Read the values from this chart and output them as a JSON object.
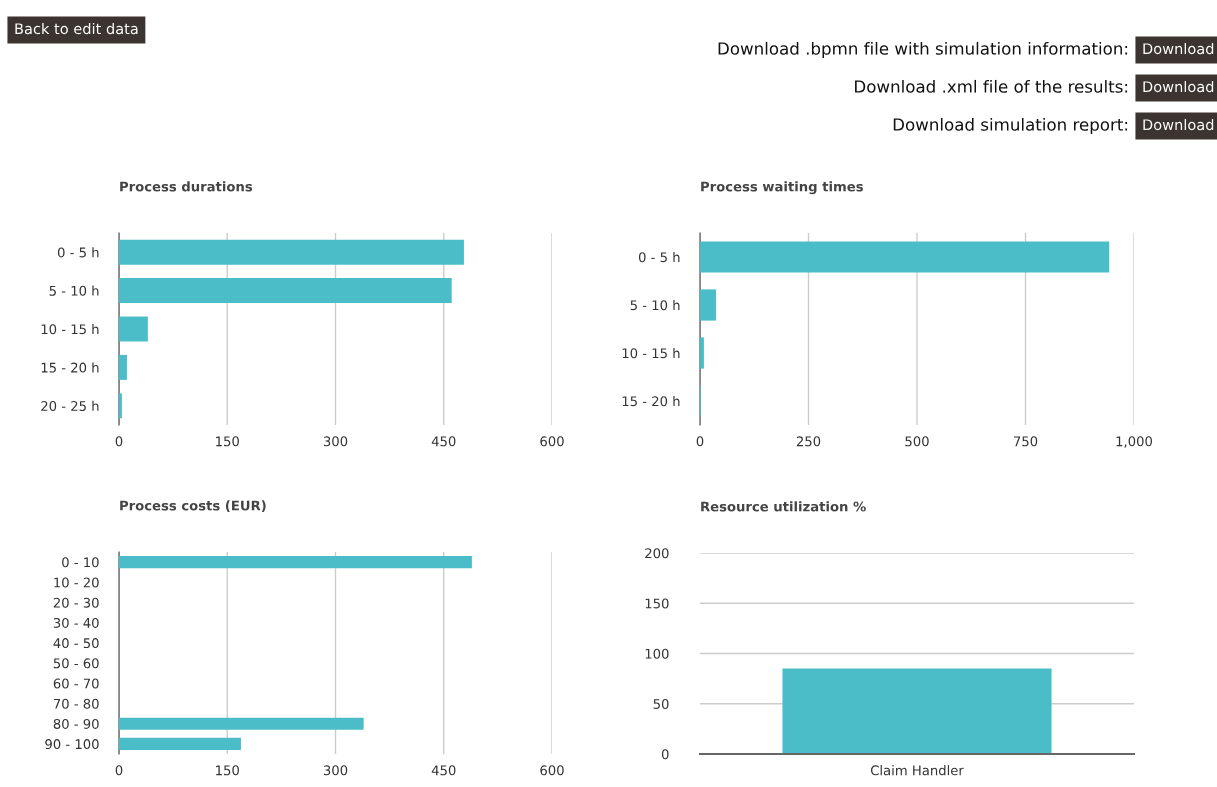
{
  "chart_data": [
    {
      "type": "other",
      "annotations": [
        "Back to edit data",
        "Download .bpmn file with simulation information:",
        "Download",
        "Download .xml file of the results:",
        "Download",
        "Download simulation report:",
        "Download"
      ]
    },
    {
      "type": "bar",
      "orientation": "horizontal",
      "title": "Process durations",
      "categories": [
        "0 - 5 h",
        "5 - 10 h",
        "10 - 15 h",
        "15 - 20 h",
        "20 - 25 h"
      ],
      "values": [
        478,
        461,
        40,
        11,
        4
      ],
      "color": "#4bbdc8",
      "xlim": [
        0,
        600
      ],
      "xticks": [
        0,
        150,
        300,
        450,
        600
      ],
      "grid": "x"
    },
    {
      "type": "bar",
      "orientation": "horizontal",
      "title": "Process waiting times",
      "categories": [
        "0 - 5 h",
        "5 - 10 h",
        "10 - 15 h",
        "15 - 20 h"
      ],
      "values": [
        943,
        37,
        9,
        2
      ],
      "color": "#4bbdc8",
      "xlim": [
        0,
        1000
      ],
      "xticks": [
        0,
        250,
        500,
        750,
        {
          "value": 1000,
          "label": "1,000"
        }
      ],
      "grid": "x"
    },
    {
      "type": "bar",
      "orientation": "horizontal",
      "title": "Process costs (EUR)",
      "categories": [
        "0 - 10",
        "10 - 20",
        "20 - 30",
        "30 - 40",
        "40 - 50",
        "50 - 60",
        "60 - 70",
        "70 - 80",
        "80 - 90",
        "90 - 100"
      ],
      "values": [
        489,
        0,
        0,
        0,
        0,
        0,
        0,
        0,
        339,
        169
      ],
      "color": "#4bbdc8",
      "xlim": [
        0,
        600
      ],
      "xticks": [
        0,
        150,
        300,
        450,
        600
      ],
      "grid": "x"
    },
    {
      "type": "bar",
      "title": "Resource utilization %",
      "categories": [
        "Claim Handler"
      ],
      "values": [
        85
      ],
      "color": "#4bbdc8",
      "ylim": [
        0,
        200
      ],
      "yticks": [
        0,
        50,
        100,
        150,
        200
      ],
      "grid": "y"
    }
  ]
}
